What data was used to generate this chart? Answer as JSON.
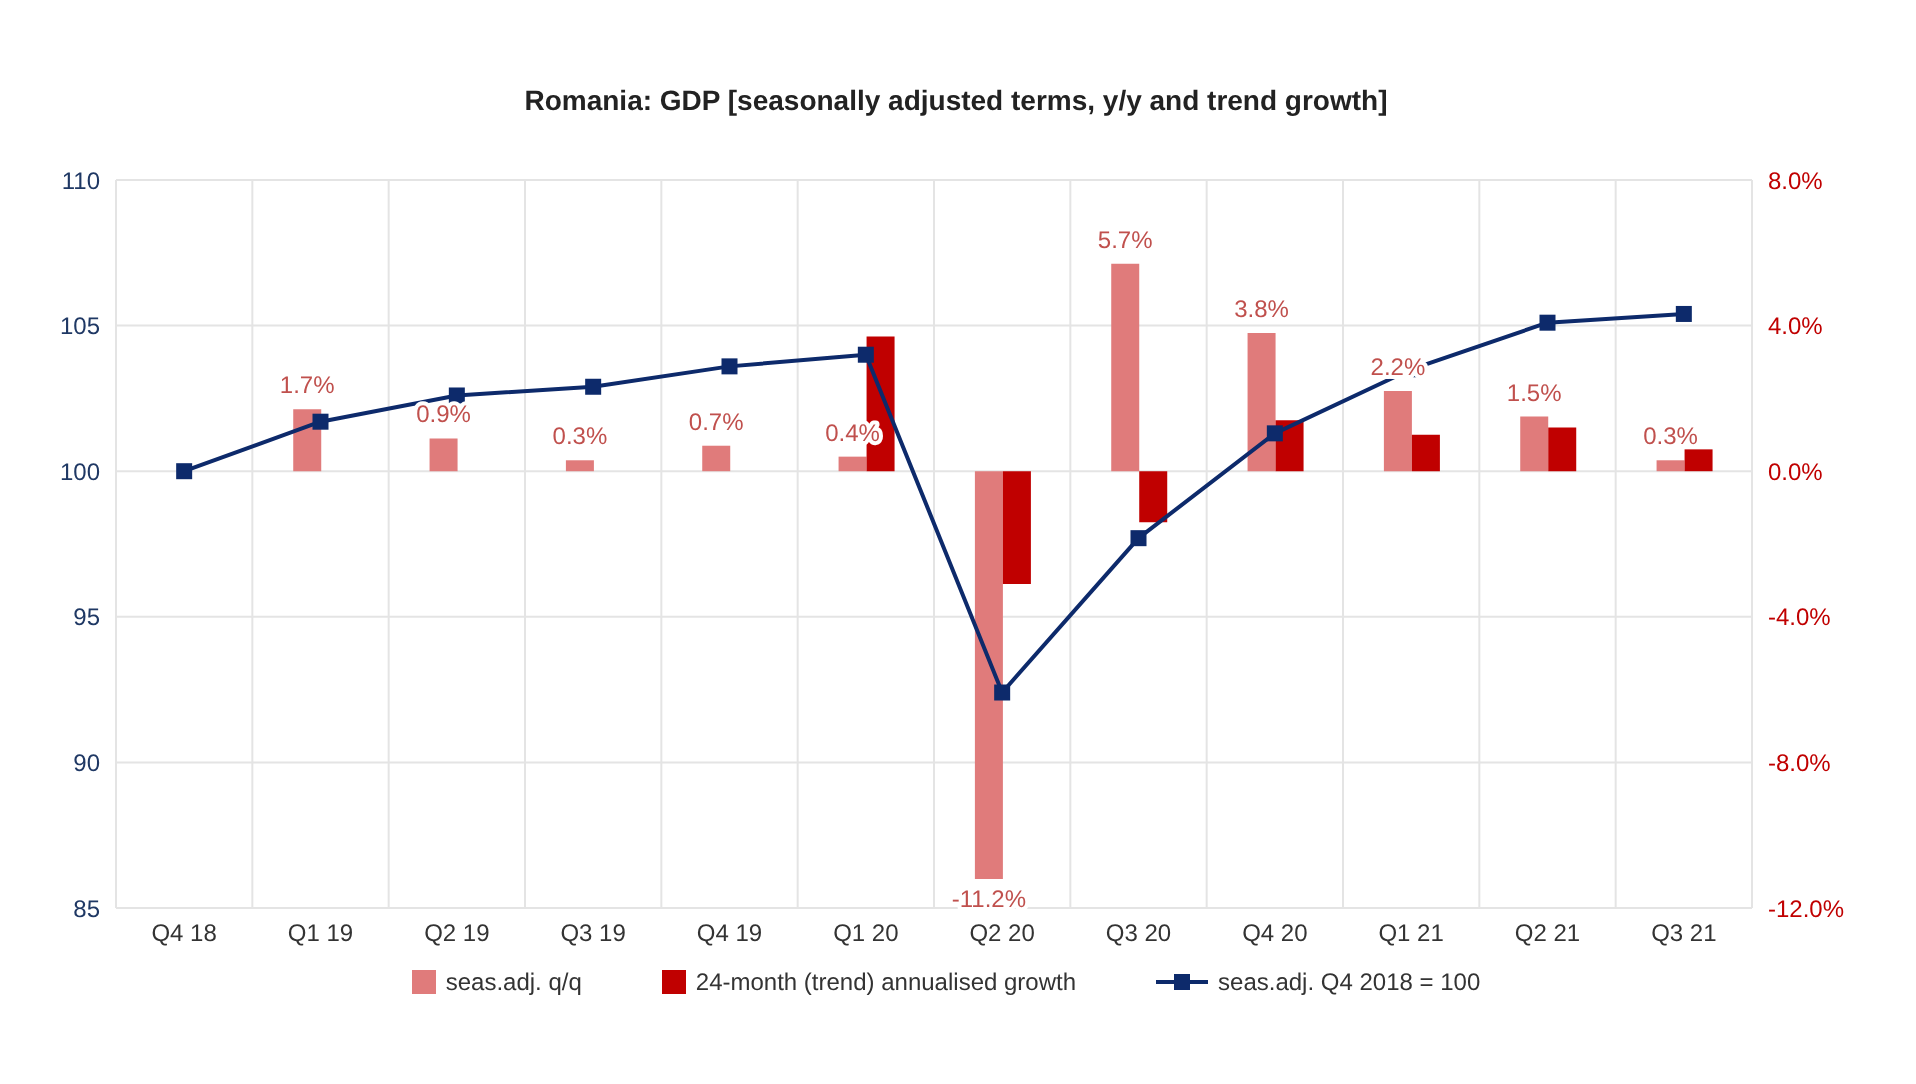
{
  "chart_data": {
    "type": "bar",
    "title": "Romania: GDP [seasonally adjusted terms, y/y and trend growth]",
    "categories": [
      "Q4 18",
      "Q1 19",
      "Q2 19",
      "Q3 19",
      "Q4 19",
      "Q1 20",
      "Q2 20",
      "Q3 20",
      "Q4 20",
      "Q1 21",
      "Q2 21",
      "Q3 21"
    ],
    "series": [
      {
        "name": "seas.adj. q/q",
        "axis": "y2",
        "color": "#e07b7b",
        "values": [
          null,
          1.7,
          0.9,
          0.3,
          0.7,
          0.4,
          -11.2,
          5.7,
          3.8,
          2.2,
          1.5,
          0.3
        ],
        "value_labels": [
          null,
          "1.7%",
          "0.9%",
          "0.3%",
          "0.7%",
          "0.4%",
          "-11.2%",
          "5.7%",
          "3.8%",
          "2.2%",
          "1.5%",
          "0.3%"
        ]
      },
      {
        "name": "24-month (trend) annualised growth",
        "axis": "y2",
        "color": "#c00000",
        "values": [
          null,
          null,
          null,
          null,
          null,
          3.7,
          -3.1,
          -1.4,
          1.4,
          1.0,
          1.2,
          0.6
        ]
      },
      {
        "name": "seas.adj. Q4 2018 = 100",
        "type": "line",
        "color": "#0d2a6b",
        "marker": "square",
        "values": [
          100,
          101.7,
          102.6,
          102.9,
          103.6,
          104.0,
          92.4,
          97.7,
          101.3,
          103.5,
          105.1,
          105.4
        ]
      }
    ],
    "ylim": [
      85,
      110
    ],
    "yticks": [
      85,
      90,
      95,
      100,
      105,
      110
    ],
    "y2lim": [
      -12,
      8
    ],
    "y2ticks": [
      {
        "value": -12,
        "label": "-12.0%"
      },
      {
        "value": -8,
        "label": "-8.0%"
      },
      {
        "value": -4,
        "label": "-4.0%"
      },
      {
        "value": 0,
        "label": "0.0%"
      },
      {
        "value": 4,
        "label": "4.0%"
      },
      {
        "value": 8,
        "label": "8.0%"
      }
    ],
    "grid": true,
    "legend": "bottom"
  }
}
